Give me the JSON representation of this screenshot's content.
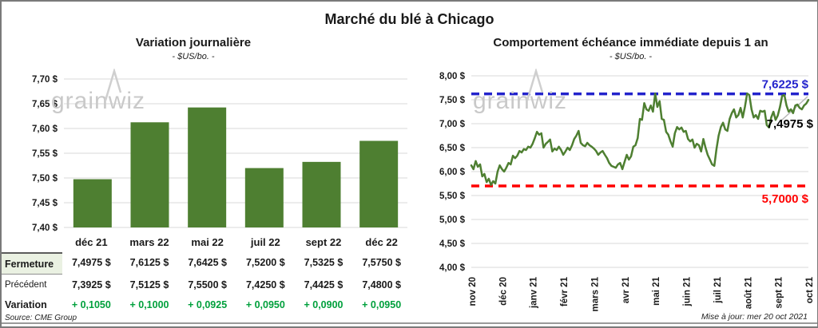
{
  "page": {
    "title": "Marché du blé à Chicago",
    "source": "Source: CME Group",
    "updated": "Mise à jour: mer 20 oct 2021",
    "watermark": "grainwiz"
  },
  "table": {
    "labels": {
      "close": "Fermeture",
      "previous": "Précédent",
      "change": "Variation"
    },
    "months": [
      "déc 21",
      "mars 22",
      "mai 22",
      "juil 22",
      "sept 22",
      "déc 22"
    ],
    "close": [
      "7,4975 $",
      "7,6125 $",
      "7,6425 $",
      "7,5200 $",
      "7,5325 $",
      "7,5750 $"
    ],
    "previous": [
      "7,3925 $",
      "7,5125 $",
      "7,5500 $",
      "7,4250 $",
      "7,4425 $",
      "7,4800 $"
    ],
    "change": [
      "+ 0,1050",
      "+ 0,1000",
      "+ 0,0925",
      "+ 0,0950",
      "+ 0,0900",
      "+ 0,0950"
    ],
    "change_color": "#00a03c"
  },
  "chart_data": [
    {
      "type": "bar",
      "title": "Variation journalière",
      "subtitle": "- $US/bo. -",
      "categories": [
        "déc 21",
        "mars 22",
        "mai 22",
        "juil 22",
        "sept 22",
        "déc 22"
      ],
      "values": [
        7.4975,
        7.6125,
        7.6425,
        7.52,
        7.5325,
        7.575
      ],
      "ylim": [
        7.4,
        7.7
      ],
      "ytick_labels": [
        "7,70 $",
        "7,65 $",
        "7,60 $",
        "7,55 $",
        "7,50 $",
        "7,45 $",
        "7,40 $"
      ],
      "bar_color": "#4e7f31",
      "grid_color": "#d9d9d9"
    },
    {
      "type": "line",
      "title": "Comportement échéance immédiate depuis 1 an",
      "subtitle": "- $US/bo. -",
      "x_labels": [
        "nov 20",
        "déc 20",
        "janv 21",
        "févr 21",
        "mars 21",
        "avr 21",
        "mai 21",
        "juin 21",
        "juil 21",
        "août 21",
        "sept 21",
        "oct 21"
      ],
      "ylim": [
        4.0,
        8.0
      ],
      "ytick_labels": [
        "8,00 $",
        "7,50 $",
        "7,00 $",
        "6,50 $",
        "6,00 $",
        "5,50 $",
        "5,00 $",
        "4,50 $",
        "4,00 $"
      ],
      "values": [
        6.13,
        6.05,
        6.22,
        6.1,
        6.15,
        5.9,
        5.95,
        5.78,
        5.85,
        5.72,
        5.8,
        5.75,
        6.0,
        6.13,
        6.05,
        6.0,
        6.08,
        6.18,
        6.15,
        6.33,
        6.28,
        6.33,
        6.43,
        6.4,
        6.47,
        6.45,
        6.52,
        6.5,
        6.58,
        6.7,
        6.83,
        6.77,
        6.8,
        6.5,
        6.58,
        6.62,
        6.67,
        6.42,
        6.48,
        6.45,
        6.52,
        6.45,
        6.35,
        6.42,
        6.5,
        6.45,
        6.55,
        6.68,
        6.75,
        6.85,
        6.6,
        6.55,
        6.53,
        6.6,
        6.55,
        6.52,
        6.48,
        6.43,
        6.35,
        6.4,
        6.43,
        6.35,
        6.28,
        6.18,
        6.12,
        6.1,
        6.08,
        6.15,
        6.18,
        6.05,
        6.2,
        6.35,
        6.25,
        6.32,
        6.52,
        6.55,
        6.7,
        7.1,
        7.08,
        7.43,
        7.3,
        7.27,
        7.38,
        7.25,
        7.63,
        7.35,
        7.47,
        7.1,
        7.08,
        6.83,
        6.77,
        6.63,
        6.52,
        6.8,
        6.93,
        6.88,
        6.92,
        6.83,
        6.85,
        6.68,
        6.63,
        6.67,
        6.5,
        6.58,
        6.55,
        6.42,
        6.68,
        6.5,
        6.35,
        6.25,
        6.15,
        6.12,
        6.47,
        6.75,
        6.93,
        7.02,
        6.88,
        6.85,
        7.1,
        7.22,
        7.3,
        7.13,
        7.18,
        7.33,
        7.13,
        7.35,
        7.63,
        7.6,
        7.3,
        7.13,
        7.18,
        7.1,
        7.27,
        7.25,
        7.27,
        6.97,
        6.92,
        7.13,
        7.25,
        7.08,
        7.17,
        7.35,
        7.58,
        7.6,
        7.38,
        7.25,
        7.3,
        7.22,
        7.38,
        7.4,
        7.33,
        7.3,
        7.38,
        7.42,
        7.4975
      ],
      "line_color": "#4e7f31",
      "grid_color": "#d9d9d9",
      "resistance": {
        "value": 7.6225,
        "label": "7,6225 $",
        "color": "#2323cc"
      },
      "support": {
        "value": 5.7,
        "label": "5,7000 $",
        "color": "#ff0000"
      },
      "last_price": {
        "value": 7.4975,
        "label": "7,4975 $",
        "color": "#000000"
      }
    }
  ]
}
